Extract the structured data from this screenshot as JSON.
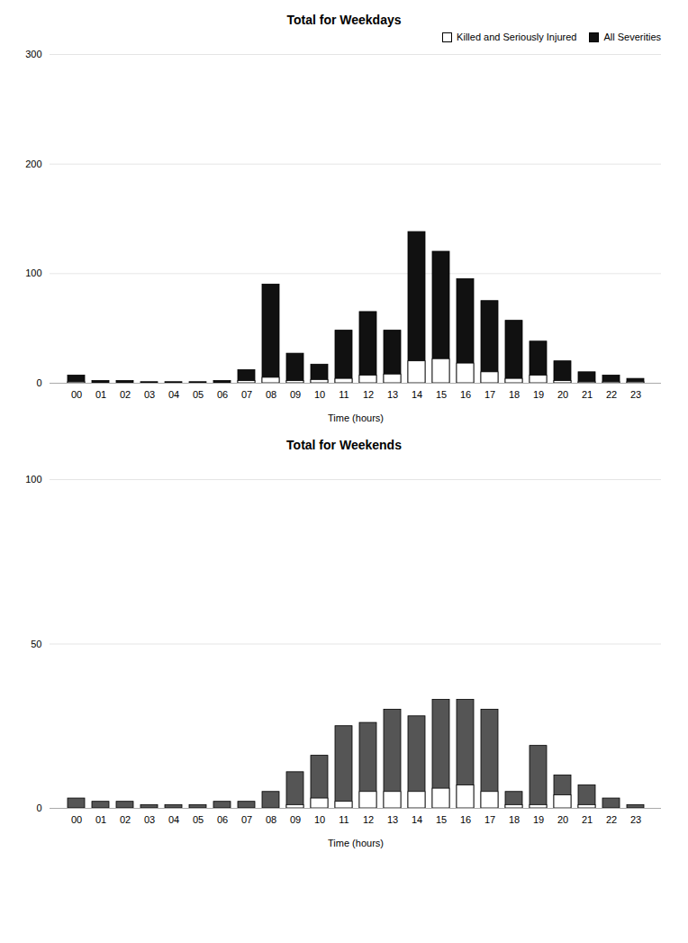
{
  "chart_data": [
    {
      "type": "bar",
      "title": "Total for Weekdays",
      "xlabel": "Time (hours)",
      "categories": [
        "00",
        "01",
        "02",
        "03",
        "04",
        "05",
        "06",
        "07",
        "08",
        "09",
        "10",
        "11",
        "12",
        "13",
        "14",
        "15",
        "16",
        "17",
        "18",
        "19",
        "20",
        "21",
        "22",
        "23"
      ],
      "series": [
        {
          "name": "All Severities",
          "color": "#111111",
          "values": [
            7,
            2,
            2,
            1,
            1,
            1,
            2,
            12,
            90,
            27,
            17,
            48,
            65,
            48,
            138,
            120,
            95,
            75,
            57,
            38,
            20,
            10,
            7,
            4
          ]
        },
        {
          "name": "Killed and Seriously Injured",
          "color": "#ffffff",
          "values": [
            1,
            0,
            0,
            0,
            0,
            0,
            0,
            2,
            5,
            2,
            3,
            4,
            7,
            8,
            20,
            22,
            18,
            10,
            4,
            7,
            2,
            1,
            1,
            1
          ]
        }
      ],
      "ylim": [
        0,
        300
      ],
      "yticks": [
        0,
        100,
        200,
        300
      ],
      "grid": true,
      "legend": "upper right"
    },
    {
      "type": "bar",
      "title": "Total for Weekends",
      "xlabel": "Time (hours)",
      "categories": [
        "00",
        "01",
        "02",
        "03",
        "04",
        "05",
        "06",
        "07",
        "08",
        "09",
        "10",
        "11",
        "12",
        "13",
        "14",
        "15",
        "16",
        "17",
        "18",
        "19",
        "20",
        "21",
        "22",
        "23"
      ],
      "series": [
        {
          "color": "#555555",
          "values": [
            3,
            2,
            2,
            1,
            1,
            1,
            2,
            2,
            5,
            11,
            16,
            25,
            26,
            30,
            28,
            33,
            33,
            30,
            5,
            19,
            10,
            7,
            3,
            1
          ]
        },
        {
          "color": "#ffffff",
          "values": [
            0,
            0,
            0,
            0,
            0,
            0,
            0,
            0,
            0,
            1,
            3,
            2,
            5,
            5,
            5,
            6,
            7,
            5,
            1,
            1,
            4,
            1,
            0,
            0
          ]
        }
      ],
      "ylim": [
        0,
        100
      ],
      "yticks": [
        0,
        50,
        100
      ],
      "grid": true
    }
  ]
}
